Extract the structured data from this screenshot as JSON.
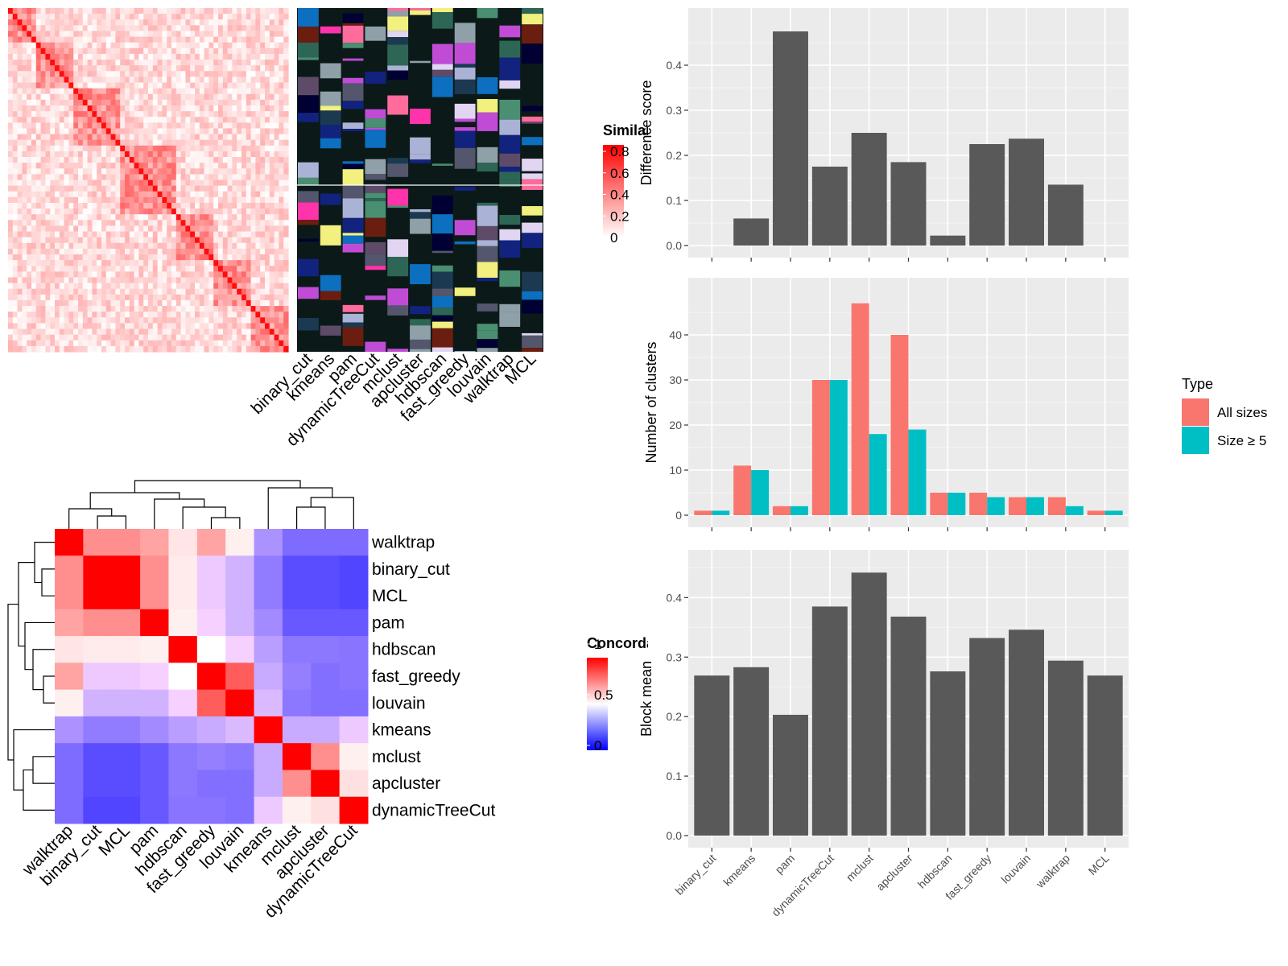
{
  "chart_data": [
    {
      "type": "heatmap",
      "legend": {
        "title": "Similarity",
        "ticks": [
          "0",
          "0.2",
          "0.4",
          "0.6",
          "0.8"
        ],
        "low_color": "#ffffff",
        "high_color": "#ff0000"
      },
      "annotation_tracks": [
        "binary_cut",
        "kmeans",
        "pam",
        "dynamicTreeCut",
        "mclust",
        "apcluster",
        "hdbscan",
        "fast_greedy",
        "louvain",
        "walktrap",
        "MCL"
      ]
    },
    {
      "type": "heatmap",
      "rows": [
        "walktrap",
        "binary_cut",
        "MCL",
        "pam",
        "hdbscan",
        "fast_greedy",
        "louvain",
        "kmeans",
        "mclust",
        "apcluster",
        "dynamicTreeCut"
      ],
      "columns": [
        "walktrap",
        "binary_cut",
        "MCL",
        "pam",
        "hdbscan",
        "fast_greedy",
        "louvain",
        "kmeans",
        "mclust",
        "apcluster",
        "dynamicTreeCut"
      ],
      "values": [
        [
          1.0,
          0.72,
          0.72,
          0.68,
          0.55,
          0.68,
          0.53,
          0.32,
          0.22,
          0.22,
          0.22
        ],
        [
          0.72,
          1.0,
          1.0,
          0.72,
          0.54,
          0.46,
          0.4,
          0.26,
          0.14,
          0.14,
          0.12
        ],
        [
          0.72,
          1.0,
          1.0,
          0.72,
          0.54,
          0.46,
          0.4,
          0.26,
          0.14,
          0.14,
          0.12
        ],
        [
          0.68,
          0.72,
          0.72,
          1.0,
          0.53,
          0.48,
          0.4,
          0.3,
          0.17,
          0.17,
          0.17
        ],
        [
          0.55,
          0.54,
          0.54,
          0.53,
          1.0,
          0.5,
          0.48,
          0.35,
          0.25,
          0.25,
          0.24
        ],
        [
          0.68,
          0.46,
          0.46,
          0.48,
          0.5,
          1.0,
          0.82,
          0.38,
          0.27,
          0.23,
          0.24
        ],
        [
          0.53,
          0.4,
          0.4,
          0.4,
          0.48,
          0.82,
          1.0,
          0.42,
          0.25,
          0.23,
          0.23
        ],
        [
          0.32,
          0.26,
          0.26,
          0.3,
          0.35,
          0.38,
          0.42,
          1.0,
          0.38,
          0.38,
          0.46
        ],
        [
          0.22,
          0.14,
          0.14,
          0.17,
          0.25,
          0.27,
          0.25,
          0.38,
          1.0,
          0.72,
          0.53
        ],
        [
          0.22,
          0.14,
          0.14,
          0.17,
          0.25,
          0.23,
          0.23,
          0.38,
          0.72,
          1.0,
          0.56
        ],
        [
          0.22,
          0.12,
          0.12,
          0.17,
          0.24,
          0.24,
          0.23,
          0.46,
          0.53,
          0.56,
          1.0
        ]
      ],
      "legend": {
        "title": "Concordance",
        "ticks": [
          "0",
          "0.5",
          "1"
        ],
        "low_color": "#0000ff",
        "mid_color": "#ffffff",
        "high_color": "#ff0000"
      }
    },
    {
      "type": "bar",
      "categories": [
        "binary_cut",
        "kmeans",
        "pam",
        "dynamicTreeCut",
        "mclust",
        "apcluster",
        "hdbscan",
        "fast_greedy",
        "louvain",
        "walktrap",
        "MCL"
      ],
      "values": [
        0.0,
        0.06,
        0.475,
        0.175,
        0.25,
        0.185,
        0.022,
        0.225,
        0.237,
        0.135,
        0.0
      ],
      "ylabel": "Difference score",
      "yticks": [
        "0.0",
        "0.1",
        "0.2",
        "0.3",
        "0.4"
      ],
      "ylim": [
        0,
        0.5
      ],
      "bar_color": "#595959"
    },
    {
      "type": "bar",
      "categories": [
        "binary_cut",
        "kmeans",
        "pam",
        "dynamicTreeCut",
        "mclust",
        "apcluster",
        "hdbscan",
        "fast_greedy",
        "louvain",
        "walktrap",
        "MCL"
      ],
      "series": [
        {
          "name": "All sizes",
          "values": [
            1,
            11,
            2,
            30,
            47,
            40,
            5,
            5,
            4,
            4,
            1
          ],
          "color": "#f8766d"
        },
        {
          "name": "Size ≥ 5",
          "values": [
            1,
            10,
            2,
            30,
            18,
            19,
            5,
            4,
            4,
            2,
            1
          ],
          "color": "#00bfc4"
        }
      ],
      "ylabel": "Number of clusters",
      "yticks": [
        "0",
        "10",
        "20",
        "30",
        "40"
      ],
      "ylim": [
        0,
        50
      ],
      "legend_title": "Type",
      "legend_position": "right"
    },
    {
      "type": "bar",
      "categories": [
        "binary_cut",
        "kmeans",
        "pam",
        "dynamicTreeCut",
        "mclust",
        "apcluster",
        "hdbscan",
        "fast_greedy",
        "louvain",
        "walktrap",
        "MCL"
      ],
      "values": [
        0.269,
        0.283,
        0.203,
        0.385,
        0.442,
        0.368,
        0.276,
        0.332,
        0.346,
        0.294,
        0.269
      ],
      "ylabel": "Block mean",
      "yticks": [
        "0.0",
        "0.1",
        "0.2",
        "0.3",
        "0.4"
      ],
      "ylim": [
        0,
        0.46
      ],
      "bar_color": "#595959"
    }
  ]
}
